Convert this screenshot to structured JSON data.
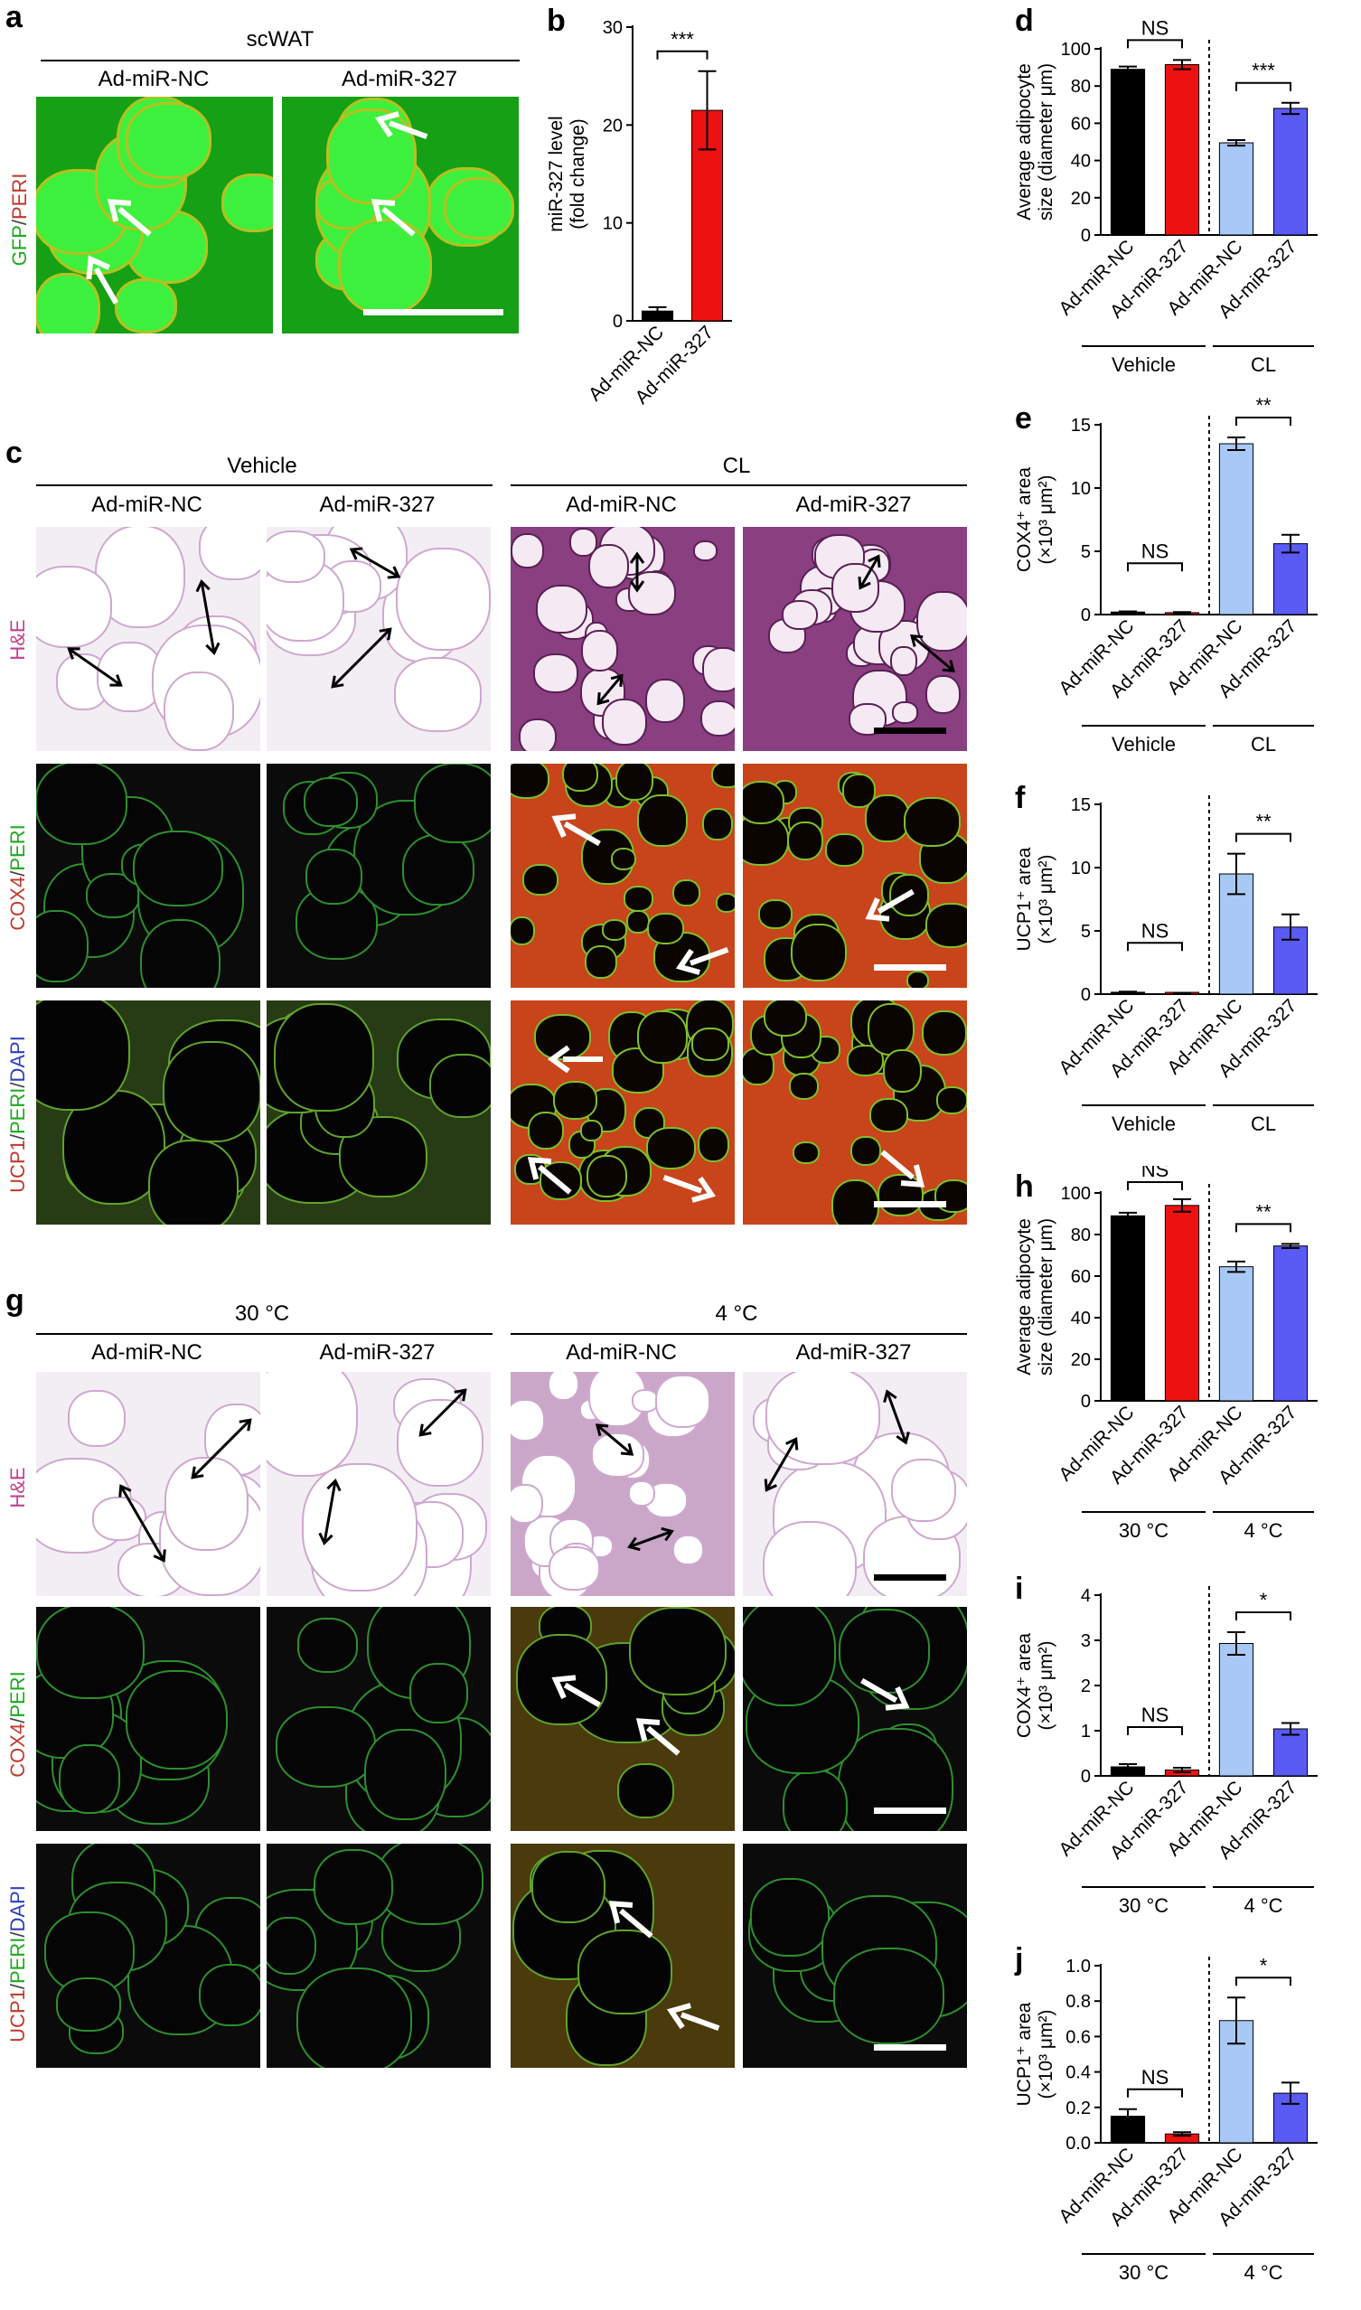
{
  "panels": {
    "a": {
      "letter": "a",
      "header": "scWAT",
      "columns": [
        "Ad-miR-NC",
        "Ad-miR-327"
      ],
      "row_label_parts": [
        {
          "text": "GFP",
          "color": "#1faa1f"
        },
        {
          "text": "/",
          "color": "#444444"
        },
        {
          "text": "PERI",
          "color": "#c0392b"
        }
      ]
    },
    "c": {
      "letter": "c",
      "groups": [
        "Vehicle",
        "CL"
      ],
      "columns": [
        "Ad-miR-NC",
        "Ad-miR-327",
        "Ad-miR-NC",
        "Ad-miR-327"
      ],
      "rows": [
        {
          "parts": [
            {
              "text": "H&E",
              "color": "#c2418f"
            }
          ]
        },
        {
          "parts": [
            {
              "text": "COX4",
              "color": "#c0392b"
            },
            {
              "text": "/",
              "color": "#444444"
            },
            {
              "text": "PERI",
              "color": "#1faa1f"
            }
          ]
        },
        {
          "parts": [
            {
              "text": "UCP1",
              "color": "#c0392b"
            },
            {
              "text": "/",
              "color": "#444444"
            },
            {
              "text": "PERI",
              "color": "#1faa1f"
            },
            {
              "text": "/",
              "color": "#444444"
            },
            {
              "text": "DAPI",
              "color": "#2c3fbf"
            }
          ]
        }
      ]
    },
    "g": {
      "letter": "g",
      "groups": [
        "30 °C",
        "4 °C"
      ],
      "columns": [
        "Ad-miR-NC",
        "Ad-miR-327",
        "Ad-miR-NC",
        "Ad-miR-327"
      ],
      "rows": [
        {
          "parts": [
            {
              "text": "H&E",
              "color": "#c2418f"
            }
          ]
        },
        {
          "parts": [
            {
              "text": "COX4",
              "color": "#c0392b"
            },
            {
              "text": "/",
              "color": "#444444"
            },
            {
              "text": "PERI",
              "color": "#1faa1f"
            }
          ]
        },
        {
          "parts": [
            {
              "text": "UCP1",
              "color": "#c0392b"
            },
            {
              "text": "/",
              "color": "#444444"
            },
            {
              "text": "PERI",
              "color": "#1faa1f"
            },
            {
              "text": "/",
              "color": "#444444"
            },
            {
              "text": "DAPI",
              "color": "#2c3fbf"
            }
          ]
        }
      ]
    }
  },
  "colors": {
    "miR-NC_vehicle": "#000000",
    "miR-327_vehicle": "#ee1111",
    "miR-NC_treated": "#a8c8f5",
    "miR-327_treated": "#5a5af5"
  },
  "chart_data": [
    {
      "id": "b",
      "letter": "b",
      "type": "bar",
      "categories": [
        "Ad-miR-NC",
        "Ad-miR-327"
      ],
      "values": [
        1.0,
        21.5
      ],
      "errors": [
        0.4,
        4.0
      ],
      "ylabel": [
        "miR-327 level",
        "(fold change)"
      ],
      "ylim": [
        0,
        30
      ],
      "yticks": [
        "0",
        "10",
        "20",
        "30"
      ],
      "colors": [
        "#000000",
        "#ee1111"
      ],
      "significance": [
        {
          "a": 0,
          "b": 1,
          "text": "***"
        }
      ],
      "groups": [],
      "divider": false
    },
    {
      "id": "d",
      "letter": "d",
      "type": "bar",
      "categories": [
        "Ad-miR-NC",
        "Ad-miR-327",
        "Ad-miR-NC",
        "Ad-miR-327"
      ],
      "values": [
        89,
        91.5,
        49.5,
        68
      ],
      "errors": [
        1.5,
        2.5,
        1.5,
        3
      ],
      "ylabel": [
        "Average adipocyte",
        "size (diameter μm)"
      ],
      "ylim": [
        0,
        100
      ],
      "yticks": [
        "0",
        "20",
        "40",
        "60",
        "80",
        "100"
      ],
      "colors": [
        "#000000",
        "#ee1111",
        "#a8c8f5",
        "#5a5af5"
      ],
      "significance": [
        {
          "a": 0,
          "b": 1,
          "text": "NS"
        },
        {
          "a": 2,
          "b": 3,
          "text": "***"
        }
      ],
      "groups": [
        "Vehicle",
        "CL"
      ],
      "divider": true
    },
    {
      "id": "e",
      "letter": "e",
      "type": "bar",
      "categories": [
        "Ad-miR-NC",
        "Ad-miR-327",
        "Ad-miR-NC",
        "Ad-miR-327"
      ],
      "values": [
        0.2,
        0.15,
        13.5,
        5.6
      ],
      "errors": [
        0.05,
        0.05,
        0.5,
        0.7
      ],
      "ylabel": [
        "COX4⁺ area",
        "(×10³ μm²)"
      ],
      "ylim": [
        0,
        15
      ],
      "yticks": [
        "0",
        "5",
        "10",
        "15"
      ],
      "colors": [
        "#000000",
        "#ee1111",
        "#a8c8f5",
        "#5a5af5"
      ],
      "significance": [
        {
          "a": 0,
          "b": 1,
          "text": "NS"
        },
        {
          "a": 2,
          "b": 3,
          "text": "**"
        }
      ],
      "groups": [
        "Vehicle",
        "CL"
      ],
      "divider": true
    },
    {
      "id": "f",
      "letter": "f",
      "type": "bar",
      "categories": [
        "Ad-miR-NC",
        "Ad-miR-327",
        "Ad-miR-NC",
        "Ad-miR-327"
      ],
      "values": [
        0.15,
        0.08,
        9.5,
        5.3
      ],
      "errors": [
        0.05,
        0.03,
        1.6,
        1.0
      ],
      "ylabel": [
        "UCP1⁺ area",
        "(×10³ μm²)"
      ],
      "ylim": [
        0,
        15
      ],
      "yticks": [
        "0",
        "5",
        "10",
        "15"
      ],
      "colors": [
        "#000000",
        "#ee1111",
        "#a8c8f5",
        "#5a5af5"
      ],
      "significance": [
        {
          "a": 0,
          "b": 1,
          "text": "NS"
        },
        {
          "a": 2,
          "b": 3,
          "text": "**"
        }
      ],
      "groups": [
        "Vehicle",
        "CL"
      ],
      "divider": true
    },
    {
      "id": "h",
      "letter": "h",
      "type": "bar",
      "categories": [
        "Ad-miR-NC",
        "Ad-miR-327",
        "Ad-miR-NC",
        "Ad-miR-327"
      ],
      "values": [
        89,
        94,
        64.5,
        74.5
      ],
      "errors": [
        1.5,
        3,
        2.5,
        1
      ],
      "ylabel": [
        "Average adipocyte",
        "size (diameter μm)"
      ],
      "ylim": [
        0,
        100
      ],
      "yticks": [
        "0",
        "20",
        "40",
        "60",
        "80",
        "100"
      ],
      "colors": [
        "#000000",
        "#ee1111",
        "#a8c8f5",
        "#5a5af5"
      ],
      "significance": [
        {
          "a": 0,
          "b": 1,
          "text": "NS"
        },
        {
          "a": 2,
          "b": 3,
          "text": "**"
        }
      ],
      "groups": [
        "30 °C",
        "4 °C"
      ],
      "divider": true
    },
    {
      "id": "i",
      "letter": "i",
      "type": "bar",
      "categories": [
        "Ad-miR-NC",
        "Ad-miR-327",
        "Ad-miR-NC",
        "Ad-miR-327"
      ],
      "values": [
        0.2,
        0.13,
        2.93,
        1.04
      ],
      "errors": [
        0.06,
        0.05,
        0.25,
        0.13
      ],
      "ylabel": [
        "COX4⁺ area",
        "(×10³ μm²)"
      ],
      "ylim": [
        0,
        4
      ],
      "yticks": [
        "0",
        "1",
        "2",
        "3",
        "4"
      ],
      "colors": [
        "#000000",
        "#ee1111",
        "#a8c8f5",
        "#5a5af5"
      ],
      "significance": [
        {
          "a": 0,
          "b": 1,
          "text": "NS"
        },
        {
          "a": 2,
          "b": 3,
          "text": "*"
        }
      ],
      "groups": [
        "30 °C",
        "4 °C"
      ],
      "divider": true
    },
    {
      "id": "j",
      "letter": "j",
      "type": "bar",
      "categories": [
        "Ad-miR-NC",
        "Ad-miR-327",
        "Ad-miR-NC",
        "Ad-miR-327"
      ],
      "values": [
        0.15,
        0.05,
        0.69,
        0.28
      ],
      "errors": [
        0.04,
        0.01,
        0.13,
        0.06
      ],
      "ylabel": [
        "UCP1⁺ area",
        "(×10³ μm²)"
      ],
      "ylim": [
        0,
        1.0
      ],
      "yticks": [
        "0.0",
        "0.2",
        "0.4",
        "0.6",
        "0.8",
        "1.0"
      ],
      "colors": [
        "#000000",
        "#ee1111",
        "#a8c8f5",
        "#5a5af5"
      ],
      "significance": [
        {
          "a": 0,
          "b": 1,
          "text": "NS"
        },
        {
          "a": 2,
          "b": 3,
          "text": "*"
        }
      ],
      "groups": [
        "30 °C",
        "4 °C"
      ],
      "divider": true
    }
  ]
}
